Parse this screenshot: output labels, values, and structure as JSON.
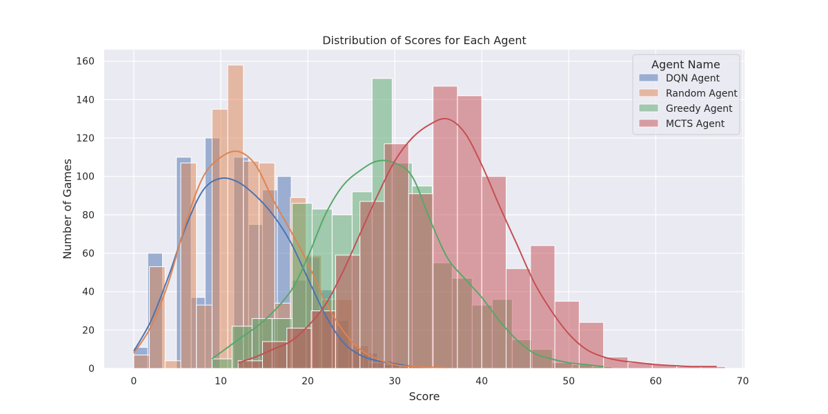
{
  "chart_data": {
    "type": "histogram",
    "title": "Distribution of Scores for Each Agent",
    "xlabel": "Score",
    "ylabel": "Number of Games",
    "xlim": [
      -3.4,
      70.2
    ],
    "ylim": [
      0,
      166
    ],
    "x_ticks": [
      0,
      10,
      20,
      30,
      40,
      50,
      60,
      70
    ],
    "y_ticks": [
      0,
      20,
      40,
      60,
      80,
      100,
      120,
      140,
      160
    ],
    "grid": true,
    "kde": true,
    "legend": {
      "title": "Agent Name",
      "placement": "top-right"
    },
    "series": [
      {
        "name": "DQN Agent",
        "color": "#4c72b0",
        "bins": [
          {
            "x0": 0.0,
            "x1": 1.6,
            "count": 11
          },
          {
            "x0": 1.6,
            "x1": 3.3,
            "count": 60
          },
          {
            "x0": 3.3,
            "x1": 4.9,
            "count": 0
          },
          {
            "x0": 4.9,
            "x1": 6.6,
            "count": 110
          },
          {
            "x0": 6.6,
            "x1": 8.2,
            "count": 37
          },
          {
            "x0": 8.2,
            "x1": 9.9,
            "count": 120
          },
          {
            "x0": 9.9,
            "x1": 11.5,
            "count": 0
          },
          {
            "x0": 11.5,
            "x1": 13.2,
            "count": 110
          },
          {
            "x0": 13.2,
            "x1": 14.8,
            "count": 75
          },
          {
            "x0": 14.8,
            "x1": 16.5,
            "count": 93
          },
          {
            "x0": 16.5,
            "x1": 18.1,
            "count": 100
          },
          {
            "x0": 18.1,
            "x1": 19.8,
            "count": 46
          },
          {
            "x0": 19.8,
            "x1": 21.4,
            "count": 58
          },
          {
            "x0": 21.4,
            "x1": 23.1,
            "count": 41
          },
          {
            "x0": 23.1,
            "x1": 24.7,
            "count": 25
          },
          {
            "x0": 24.7,
            "x1": 26.4,
            "count": 10
          },
          {
            "x0": 26.4,
            "x1": 28.0,
            "count": 8
          },
          {
            "x0": 28.0,
            "x1": 29.7,
            "count": 4
          },
          {
            "x0": 29.7,
            "x1": 31.3,
            "count": 2
          },
          {
            "x0": 31.3,
            "x1": 33.0,
            "count": 1
          }
        ],
        "kde": [
          [
            0,
            9
          ],
          [
            2,
            25
          ],
          [
            4,
            48
          ],
          [
            6,
            74
          ],
          [
            8,
            93
          ],
          [
            10,
            99
          ],
          [
            12,
            97
          ],
          [
            14,
            90
          ],
          [
            16,
            80
          ],
          [
            18,
            66
          ],
          [
            20,
            47
          ],
          [
            22,
            28
          ],
          [
            24,
            14
          ],
          [
            26,
            7
          ],
          [
            28,
            4
          ],
          [
            30,
            2.5
          ],
          [
            32,
            1
          ]
        ]
      },
      {
        "name": "Random Agent",
        "color": "#dd8452",
        "bins": [
          {
            "x0": 0.0,
            "x1": 1.8,
            "count": 7
          },
          {
            "x0": 1.8,
            "x1": 3.6,
            "count": 53
          },
          {
            "x0": 3.6,
            "x1": 5.4,
            "count": 4
          },
          {
            "x0": 5.4,
            "x1": 7.2,
            "count": 107
          },
          {
            "x0": 7.2,
            "x1": 9.0,
            "count": 33
          },
          {
            "x0": 9.0,
            "x1": 10.8,
            "count": 135
          },
          {
            "x0": 10.8,
            "x1": 12.6,
            "count": 158
          },
          {
            "x0": 12.6,
            "x1": 14.4,
            "count": 108
          },
          {
            "x0": 14.4,
            "x1": 16.2,
            "count": 107
          },
          {
            "x0": 16.2,
            "x1": 18.0,
            "count": 34
          },
          {
            "x0": 18.0,
            "x1": 19.8,
            "count": 89
          },
          {
            "x0": 19.8,
            "x1": 21.6,
            "count": 59
          },
          {
            "x0": 21.6,
            "x1": 23.4,
            "count": 36
          },
          {
            "x0": 23.4,
            "x1": 25.2,
            "count": 36
          },
          {
            "x0": 25.2,
            "x1": 27.0,
            "count": 12
          },
          {
            "x0": 27.0,
            "x1": 28.8,
            "count": 3
          },
          {
            "x0": 28.8,
            "x1": 30.6,
            "count": 2
          },
          {
            "x0": 30.6,
            "x1": 32.4,
            "count": 1
          },
          {
            "x0": 32.4,
            "x1": 34.2,
            "count": 1
          },
          {
            "x0": 34.2,
            "x1": 36.0,
            "count": 0.5
          }
        ],
        "kde": [
          [
            0,
            8
          ],
          [
            2,
            22
          ],
          [
            4,
            45
          ],
          [
            6,
            76
          ],
          [
            8,
            100
          ],
          [
            10,
            110
          ],
          [
            12,
            113
          ],
          [
            14,
            106
          ],
          [
            16,
            88
          ],
          [
            18,
            72
          ],
          [
            20,
            55
          ],
          [
            22,
            35
          ],
          [
            24,
            20
          ],
          [
            26,
            10
          ],
          [
            28,
            5
          ],
          [
            30,
            2
          ],
          [
            32,
            1
          ],
          [
            36,
            0.5
          ]
        ]
      },
      {
        "name": "Greedy Agent",
        "color": "#55a868",
        "bins": [
          {
            "x0": 9.0,
            "x1": 11.3,
            "count": 5
          },
          {
            "x0": 11.3,
            "x1": 13.6,
            "count": 22
          },
          {
            "x0": 13.6,
            "x1": 15.9,
            "count": 26
          },
          {
            "x0": 15.9,
            "x1": 18.2,
            "count": 26
          },
          {
            "x0": 18.2,
            "x1": 20.5,
            "count": 86
          },
          {
            "x0": 20.5,
            "x1": 22.8,
            "count": 83
          },
          {
            "x0": 22.8,
            "x1": 25.1,
            "count": 80
          },
          {
            "x0": 25.1,
            "x1": 27.4,
            "count": 92
          },
          {
            "x0": 27.4,
            "x1": 29.7,
            "count": 151
          },
          {
            "x0": 29.7,
            "x1": 32.0,
            "count": 107
          },
          {
            "x0": 32.0,
            "x1": 34.3,
            "count": 95
          },
          {
            "x0": 34.3,
            "x1": 36.6,
            "count": 55
          },
          {
            "x0": 36.6,
            "x1": 38.9,
            "count": 47
          },
          {
            "x0": 38.9,
            "x1": 41.2,
            "count": 33
          },
          {
            "x0": 41.2,
            "x1": 43.5,
            "count": 36
          },
          {
            "x0": 43.5,
            "x1": 45.8,
            "count": 15
          },
          {
            "x0": 45.8,
            "x1": 48.1,
            "count": 10
          },
          {
            "x0": 48.1,
            "x1": 50.4,
            "count": 3
          },
          {
            "x0": 50.4,
            "x1": 52.7,
            "count": 2
          },
          {
            "x0": 52.7,
            "x1": 55.0,
            "count": 1
          }
        ],
        "kde": [
          [
            9,
            5
          ],
          [
            12,
            15
          ],
          [
            15,
            25
          ],
          [
            18,
            40
          ],
          [
            20,
            58
          ],
          [
            22,
            80
          ],
          [
            24,
            95
          ],
          [
            26,
            103
          ],
          [
            28,
            108
          ],
          [
            30,
            107
          ],
          [
            32,
            100
          ],
          [
            34,
            78
          ],
          [
            36,
            58
          ],
          [
            38,
            47
          ],
          [
            40,
            37
          ],
          [
            42,
            25
          ],
          [
            44,
            15
          ],
          [
            46,
            8
          ],
          [
            48,
            5
          ],
          [
            50,
            3
          ],
          [
            52,
            2
          ],
          [
            54,
            1
          ]
        ]
      },
      {
        "name": "MCTS Agent",
        "color": "#c44e52",
        "bins": [
          {
            "x0": 12.0,
            "x1": 14.8,
            "count": 4
          },
          {
            "x0": 14.8,
            "x1": 17.6,
            "count": 14
          },
          {
            "x0": 17.6,
            "x1": 20.4,
            "count": 21
          },
          {
            "x0": 20.4,
            "x1": 23.2,
            "count": 30
          },
          {
            "x0": 23.2,
            "x1": 26.0,
            "count": 59
          },
          {
            "x0": 26.0,
            "x1": 28.8,
            "count": 87
          },
          {
            "x0": 28.8,
            "x1": 31.6,
            "count": 117
          },
          {
            "x0": 31.6,
            "x1": 34.4,
            "count": 91
          },
          {
            "x0": 34.4,
            "x1": 37.2,
            "count": 147
          },
          {
            "x0": 37.2,
            "x1": 40.0,
            "count": 142
          },
          {
            "x0": 40.0,
            "x1": 42.8,
            "count": 100
          },
          {
            "x0": 42.8,
            "x1": 45.6,
            "count": 52
          },
          {
            "x0": 45.6,
            "x1": 48.4,
            "count": 64
          },
          {
            "x0": 48.4,
            "x1": 51.2,
            "count": 35
          },
          {
            "x0": 51.2,
            "x1": 54.0,
            "count": 24
          },
          {
            "x0": 54.0,
            "x1": 56.8,
            "count": 6
          },
          {
            "x0": 56.8,
            "x1": 59.6,
            "count": 3
          },
          {
            "x0": 59.6,
            "x1": 62.4,
            "count": 2
          },
          {
            "x0": 62.4,
            "x1": 65.2,
            "count": 1
          },
          {
            "x0": 65.2,
            "x1": 68.0,
            "count": 1
          }
        ],
        "kde": [
          [
            12,
            3
          ],
          [
            14,
            6
          ],
          [
            16,
            10
          ],
          [
            18,
            14
          ],
          [
            20,
            22
          ],
          [
            22,
            33
          ],
          [
            24,
            50
          ],
          [
            26,
            70
          ],
          [
            28,
            90
          ],
          [
            30,
            108
          ],
          [
            32,
            120
          ],
          [
            34,
            127
          ],
          [
            36,
            130
          ],
          [
            38,
            123
          ],
          [
            40,
            106
          ],
          [
            42,
            85
          ],
          [
            44,
            65
          ],
          [
            46,
            45
          ],
          [
            48,
            30
          ],
          [
            50,
            18
          ],
          [
            52,
            10
          ],
          [
            54,
            6
          ],
          [
            56,
            4
          ],
          [
            58,
            3
          ],
          [
            60,
            2
          ],
          [
            62,
            1.5
          ],
          [
            64,
            1
          ],
          [
            67,
            1
          ]
        ]
      }
    ]
  }
}
